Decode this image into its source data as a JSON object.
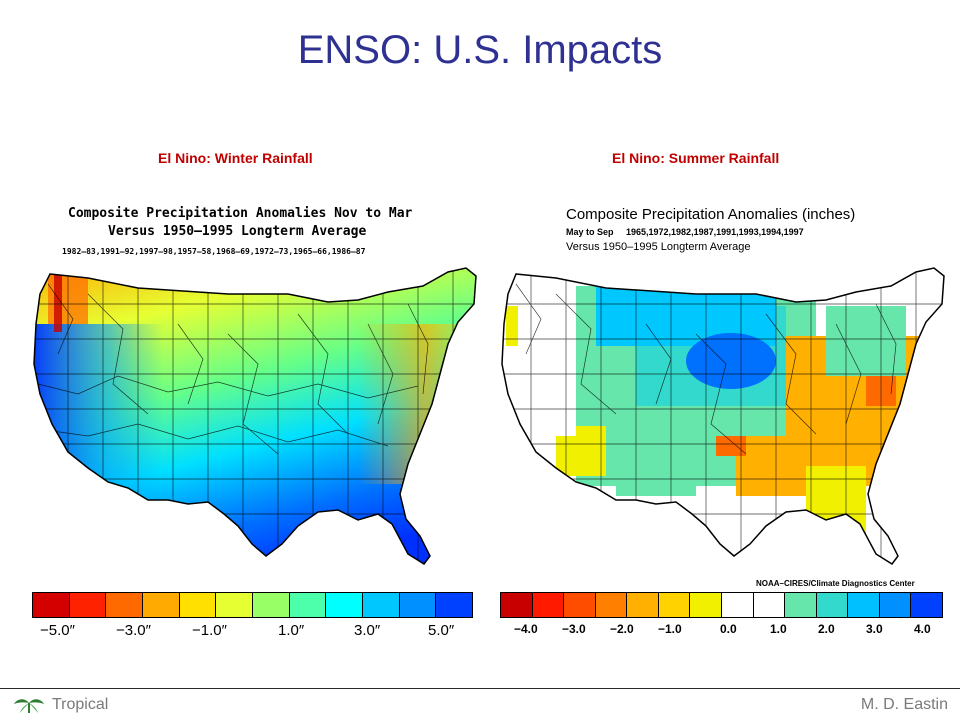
{
  "slide": {
    "title": "ENSO: U.S. Impacts"
  },
  "panels": [
    {
      "title": "El Nino:  Winter Rainfall",
      "map_title_line1": "Composite Precipitation Anomalies Nov to Mar",
      "map_title_line2": "Versus 1950–1995 Longterm Average",
      "map_years": "1982–83,1991–92,1997–98,1957–58,1968–69,1972–73,1965–66,1986–87",
      "legend_colors": [
        "#d40000",
        "#ff2200",
        "#ff6a00",
        "#ffaa00",
        "#ffe000",
        "#e6ff33",
        "#99ff66",
        "#4dffaa",
        "#00ffff",
        "#00c8ff",
        "#0090ff",
        "#0040ff"
      ],
      "legend_ticks": [
        "−5.0″",
        "−3.0″",
        "−1.0″",
        "1.0″",
        "3.0″",
        "5.0″"
      ]
    },
    {
      "title": "El Nino:  Summer Rainfall",
      "map_title_line1": "Composite Precipitation Anomalies (inches)",
      "map_title_line2a": "May to Sep",
      "map_title_line2b": "1965,1972,1982,1987,1991,1993,1994,1997",
      "map_title_line3": "Versus 1950–1995 Longterm Average",
      "credit": "NOAA–CIRES/Climate Diagnostics Center",
      "legend_colors": [
        "#c80000",
        "#ff1a00",
        "#ff4d00",
        "#ff8000",
        "#ffb000",
        "#ffd200",
        "#f0f000",
        "#ffffff",
        "#ffffff",
        "#66e6aa",
        "#33d9cc",
        "#00c0ff",
        "#0090ff",
        "#0040ff"
      ],
      "legend_ticks": [
        "−4.0",
        "−3.0",
        "−2.0",
        "−1.0",
        "0.0",
        "1.0",
        "2.0",
        "3.0",
        "4.0"
      ]
    }
  ],
  "footer": {
    "left": "Tropical",
    "right": "M. D. Eastin"
  }
}
